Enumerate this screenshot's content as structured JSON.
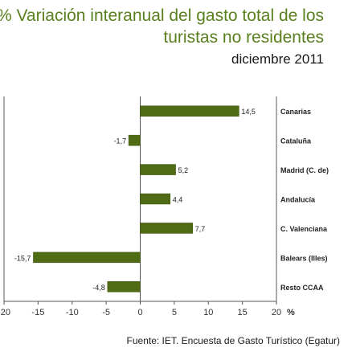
{
  "title_lines": [
    "% Variación interanual del gasto total de los",
    "turistas no residentes"
  ],
  "subtitle": "diciembre 2011",
  "source": "Fuente: IET. Encuesta de Gasto Turístico (Egatur)",
  "colors": {
    "bar": "#4f6b14",
    "bar_edge": "#3c5210",
    "title": "#5a7f1e",
    "axis": "#555555"
  },
  "chart_data": {
    "type": "bar",
    "orientation": "horizontal",
    "title": "% Variación interanual del gasto total de los turistas no residentes",
    "subtitle": "diciembre 2011",
    "categories": [
      "Canarias",
      "Cataluña",
      "Madrid (C. de)",
      "Andalucía",
      "C. Valenciana",
      "Balears (Illes)",
      "Resto CCAA"
    ],
    "values": [
      14.5,
      -1.7,
      5.2,
      4.4,
      7.7,
      -15.7,
      -4.8
    ],
    "value_labels": [
      "14,5",
      "-1,7",
      "5,2",
      "4,4",
      "7,7",
      "-15,7",
      "-4,8"
    ],
    "xlim": [
      -20,
      20
    ],
    "xticks": [
      -20,
      -15,
      -10,
      -5,
      0,
      5,
      10,
      15,
      20
    ],
    "xtick_labels": [
      "-20",
      "-15",
      "-10",
      "-5",
      "0",
      "5",
      "10",
      "15",
      "20"
    ],
    "x_unit": "%",
    "grid": false,
    "legend": "none"
  }
}
